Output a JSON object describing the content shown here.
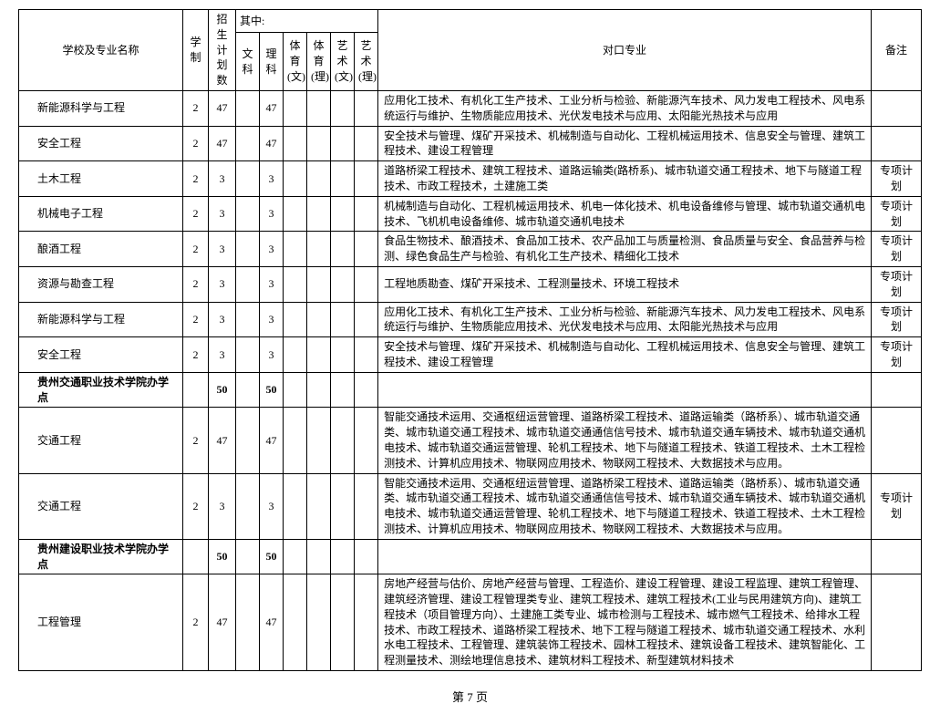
{
  "headers": {
    "name": "学校及专业名称",
    "xuezhi": "学制",
    "plan": "招生计划数",
    "qizhong": "其中:",
    "wenke": "文科",
    "like": "理科",
    "tywen": "体育(文)",
    "tyli": "体育(理)",
    "yswen": "艺术(文)",
    "ysli": "艺术(理)",
    "duikou": "对口专业",
    "beizhu": "备注"
  },
  "rows": [
    {
      "name": "新能源科学与工程",
      "xz": "2",
      "plan": "47",
      "wk": "",
      "lk": "47",
      "tw": "",
      "tl": "",
      "yw": "",
      "yl": "",
      "desc": "应用化工技术、有机化工生产技术、工业分析与检验、新能源汽车技术、风力发电工程技术、风电系统运行与维护、生物质能应用技术、光伏发电技术与应用、太阳能光热技术与应用",
      "remark": "",
      "bold": false
    },
    {
      "name": "安全工程",
      "xz": "2",
      "plan": "47",
      "wk": "",
      "lk": "47",
      "tw": "",
      "tl": "",
      "yw": "",
      "yl": "",
      "desc": "安全技术与管理、煤矿开采技术、机械制造与自动化、工程机械运用技术、信息安全与管理、建筑工程技术、建设工程管理",
      "remark": "",
      "bold": false
    },
    {
      "name": "土木工程",
      "xz": "2",
      "plan": "3",
      "wk": "",
      "lk": "3",
      "tw": "",
      "tl": "",
      "yw": "",
      "yl": "",
      "desc": "道路桥梁工程技术、建筑工程技术、道路运输类(路桥系)、城市轨道交通工程技术、地下与隧道工程技术、市政工程技术，土建施工类",
      "remark": "专项计划",
      "bold": false
    },
    {
      "name": "机械电子工程",
      "xz": "2",
      "plan": "3",
      "wk": "",
      "lk": "3",
      "tw": "",
      "tl": "",
      "yw": "",
      "yl": "",
      "desc": "机械制造与自动化、工程机械运用技术、机电一体化技术、机电设备维修与管理、城市轨道交通机电技术、飞机机电设备维修、城市轨道交通机电技术",
      "remark": "专项计划",
      "bold": false
    },
    {
      "name": "酿酒工程",
      "xz": "2",
      "plan": "3",
      "wk": "",
      "lk": "3",
      "tw": "",
      "tl": "",
      "yw": "",
      "yl": "",
      "desc": "食品生物技术、酿酒技术、食品加工技术、农产品加工与质量检测、食品质量与安全、食品营养与检测、绿色食品生产与检验、有机化工生产技术、精细化工技术",
      "remark": "专项计划",
      "bold": false
    },
    {
      "name": "资源与勘查工程",
      "xz": "2",
      "plan": "3",
      "wk": "",
      "lk": "3",
      "tw": "",
      "tl": "",
      "yw": "",
      "yl": "",
      "desc": "工程地质勘查、煤矿开采技术、工程测量技术、环境工程技术",
      "remark": "专项计划",
      "bold": false
    },
    {
      "name": "新能源科学与工程",
      "xz": "2",
      "plan": "3",
      "wk": "",
      "lk": "3",
      "tw": "",
      "tl": "",
      "yw": "",
      "yl": "",
      "desc": "应用化工技术、有机化工生产技术、工业分析与检验、新能源汽车技术、风力发电工程技术、风电系统运行与维护、生物质能应用技术、光伏发电技术与应用、太阳能光热技术与应用",
      "remark": "专项计划",
      "bold": false
    },
    {
      "name": "安全工程",
      "xz": "2",
      "plan": "3",
      "wk": "",
      "lk": "3",
      "tw": "",
      "tl": "",
      "yw": "",
      "yl": "",
      "desc": "安全技术与管理、煤矿开采技术、机械制造与自动化、工程机械运用技术、信息安全与管理、建筑工程技术、建设工程管理",
      "remark": "专项计划",
      "bold": false
    },
    {
      "name": "贵州交通职业技术学院办学点",
      "xz": "",
      "plan": "50",
      "wk": "",
      "lk": "50",
      "tw": "",
      "tl": "",
      "yw": "",
      "yl": "",
      "desc": "",
      "remark": "",
      "bold": true
    },
    {
      "name": "交通工程",
      "xz": "2",
      "plan": "47",
      "wk": "",
      "lk": "47",
      "tw": "",
      "tl": "",
      "yw": "",
      "yl": "",
      "desc": "智能交通技术运用、交通枢纽运营管理、道路桥梁工程技术、道路运输类（路桥系）、城市轨道交通类、城市轨道交通工程技术、城市轨道交通通信信号技术、城市轨道交通车辆技术、城市轨道交通机电技术、城市轨道交通运营管理、轮机工程技术、地下与隧道工程技术、铁道工程技术、土木工程检测技术、计算机应用技术、物联网应用技术、物联网工程技术、大数据技术与应用。",
      "remark": "",
      "bold": false
    },
    {
      "name": "交通工程",
      "xz": "2",
      "plan": "3",
      "wk": "",
      "lk": "3",
      "tw": "",
      "tl": "",
      "yw": "",
      "yl": "",
      "desc": "智能交通技术运用、交通枢纽运营管理、道路桥梁工程技术、道路运输类（路桥系）、城市轨道交通类、城市轨道交通工程技术、城市轨道交通通信信号技术、城市轨道交通车辆技术、城市轨道交通机电技术、城市轨道交通运营管理、轮机工程技术、地下与隧道工程技术、铁道工程技术、土木工程检测技术、计算机应用技术、物联网应用技术、物联网工程技术、大数据技术与应用。",
      "remark": "专项计划",
      "bold": false
    },
    {
      "name": "贵州建设职业技术学院办学点",
      "xz": "",
      "plan": "50",
      "wk": "",
      "lk": "50",
      "tw": "",
      "tl": "",
      "yw": "",
      "yl": "",
      "desc": "",
      "remark": "",
      "bold": true
    },
    {
      "name": "工程管理",
      "xz": "2",
      "plan": "47",
      "wk": "",
      "lk": "47",
      "tw": "",
      "tl": "",
      "yw": "",
      "yl": "",
      "desc": "房地产经营与估价、房地产经营与管理、工程造价、建设工程管理、建设工程监理、建筑工程管理、建筑经济管理、建设工程管理类专业、建筑工程技术、建筑工程技术(工业与民用建筑方向)、建筑工程技术（项目管理方向）、土建施工类专业、城市检测与工程技术、城市燃气工程技术、给排水工程技术、市政工程技术、道路桥梁工程技术、地下工程与隧道工程技术、城市轨道交通工程技术、水利水电工程技术、工程管理、建筑装饰工程技术、园林工程技术、建筑设备工程技术、建筑智能化、工程测量技术、测绘地理信息技术、建筑材料工程技术、新型建筑材料技术",
      "remark": "",
      "bold": false
    }
  ],
  "footer": "第 7 页"
}
